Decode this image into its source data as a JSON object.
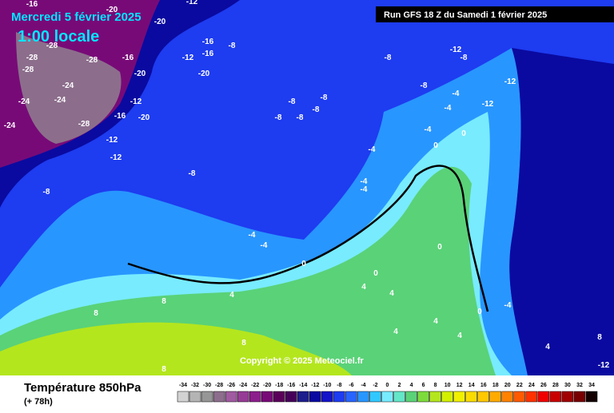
{
  "header": {
    "date": "Mercredi 5 février 2025",
    "time": "1:00 locale",
    "run": "Run GFS 18 Z du Samedi 1 février 2025",
    "copyright": "Copyright © 2025 Meteociel.fr"
  },
  "footer": {
    "title": "Température 850hPa",
    "subtitle": "(+ 78h)"
  },
  "scale": {
    "labels": [
      -34,
      -32,
      -30,
      -28,
      -26,
      -24,
      -22,
      -20,
      -18,
      -16,
      -14,
      -12,
      -10,
      -8,
      -6,
      -4,
      -2,
      0,
      2,
      4,
      6,
      8,
      10,
      12,
      14,
      16,
      18,
      20,
      22,
      24,
      26,
      28,
      30,
      32,
      34
    ],
    "colors": [
      "#d2d2d2",
      "#b4b4b4",
      "#969696",
      "#8c6e8c",
      "#a05aa0",
      "#963c96",
      "#8c1e8c",
      "#780a78",
      "#5a005a",
      "#46005a",
      "#1e1e8c",
      "#0a0aa0",
      "#1414c8",
      "#1e3cf0",
      "#2864ff",
      "#2896ff",
      "#32c8ff",
      "#78ebff",
      "#64e6c8",
      "#5ad278",
      "#7ddc3c",
      "#b4e61e",
      "#d2f000",
      "#f0f000",
      "#fadc00",
      "#ffc800",
      "#ffaa00",
      "#ff8200",
      "#ff5a00",
      "#ff3200",
      "#f00000",
      "#c80000",
      "#a00000",
      "#780000",
      "#140000"
    ]
  },
  "contour_labels": [
    -16,
    -20,
    -20,
    -28,
    -24,
    -20,
    -16,
    -12,
    -16,
    -8,
    -12,
    -28,
    -28,
    -16,
    -20,
    -24,
    -24,
    -28,
    -12,
    -16,
    -20,
    -28,
    -24,
    -12,
    -12,
    -8,
    -8,
    -8,
    -8,
    -8,
    -8,
    -8,
    -8,
    -8,
    -4,
    -4,
    -4,
    -4,
    -4,
    -4,
    -4,
    -4,
    -12,
    -8,
    -12,
    -12,
    0,
    0,
    0,
    0,
    0,
    0,
    4,
    4,
    4,
    4,
    4,
    4,
    8,
    8,
    8,
    8,
    8,
    -12,
    -4,
    4
  ]
}
